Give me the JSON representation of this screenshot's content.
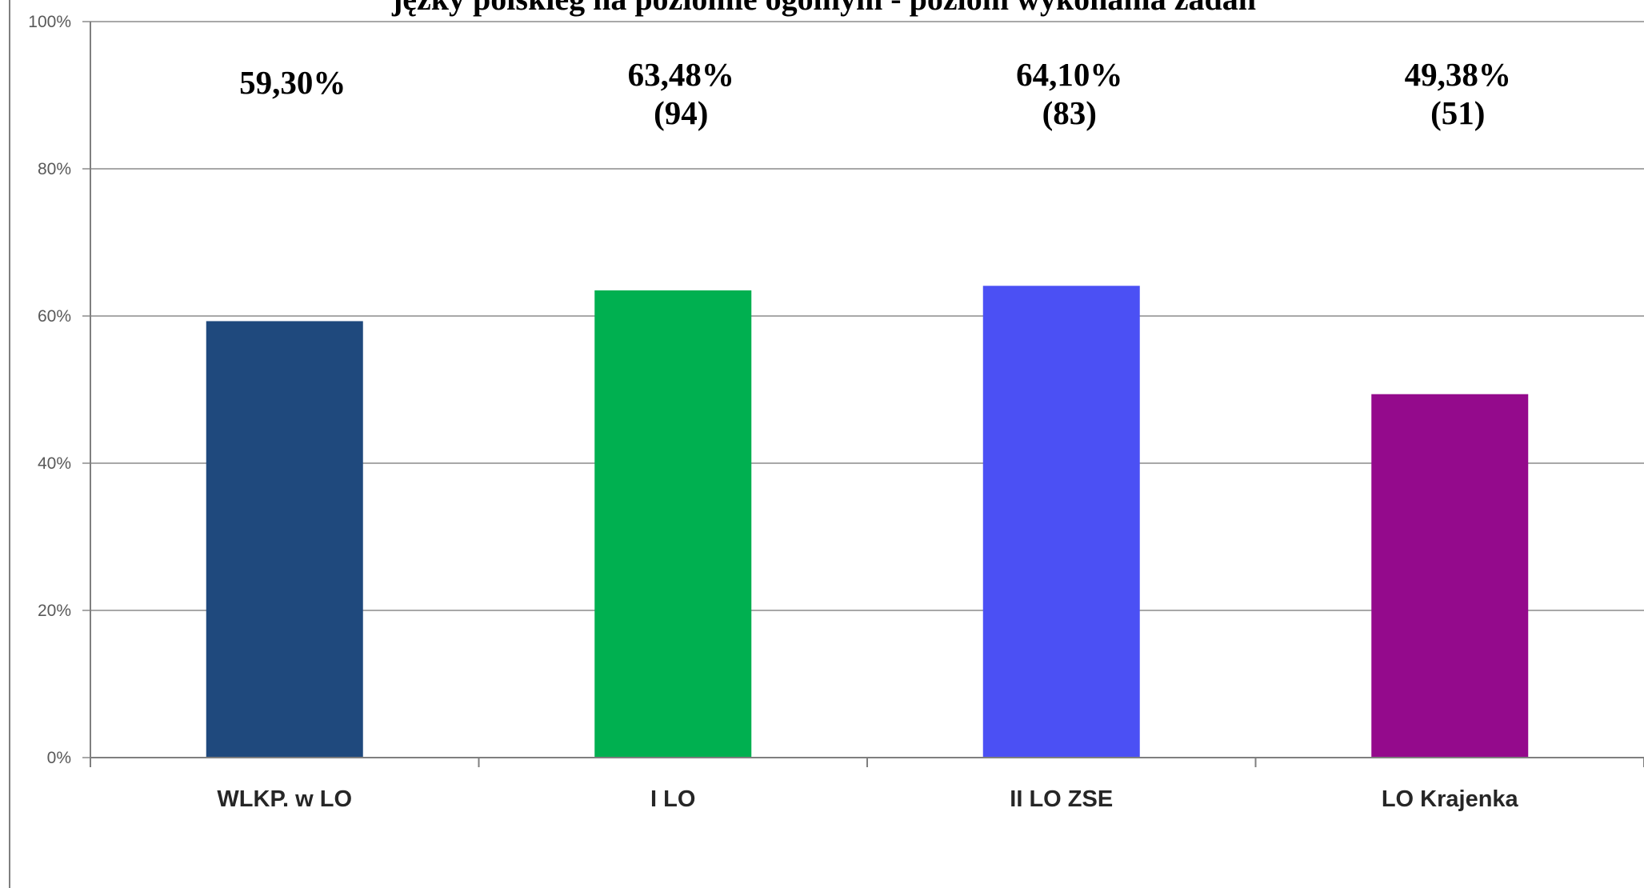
{
  "chart_data": {
    "type": "bar",
    "title": "jęzky polskieg na poziomie ogólnym - poziom wykonania zadań",
    "categories": [
      "WLKP. w LO",
      "I LO",
      "II LO ZSE",
      "LO Krajenka"
    ],
    "values": [
      59.3,
      63.48,
      64.1,
      49.38
    ],
    "bar_colors": [
      "#1f497d",
      "#00b050",
      "#4b50f4",
      "#940a8c"
    ],
    "data_labels": [
      {
        "value": "59,30%",
        "count": ""
      },
      {
        "value": "63,48%",
        "count": "(94)"
      },
      {
        "value": "64,10%",
        "count": "(83)"
      },
      {
        "value": "49,38%",
        "count": "(51)"
      }
    ],
    "ylim": [
      0,
      100
    ],
    "yticks": [
      "0%",
      "20%",
      "40%",
      "60%",
      "80%",
      "100%"
    ],
    "xlabel": "",
    "ylabel": "",
    "grid": true,
    "legend": "none"
  }
}
